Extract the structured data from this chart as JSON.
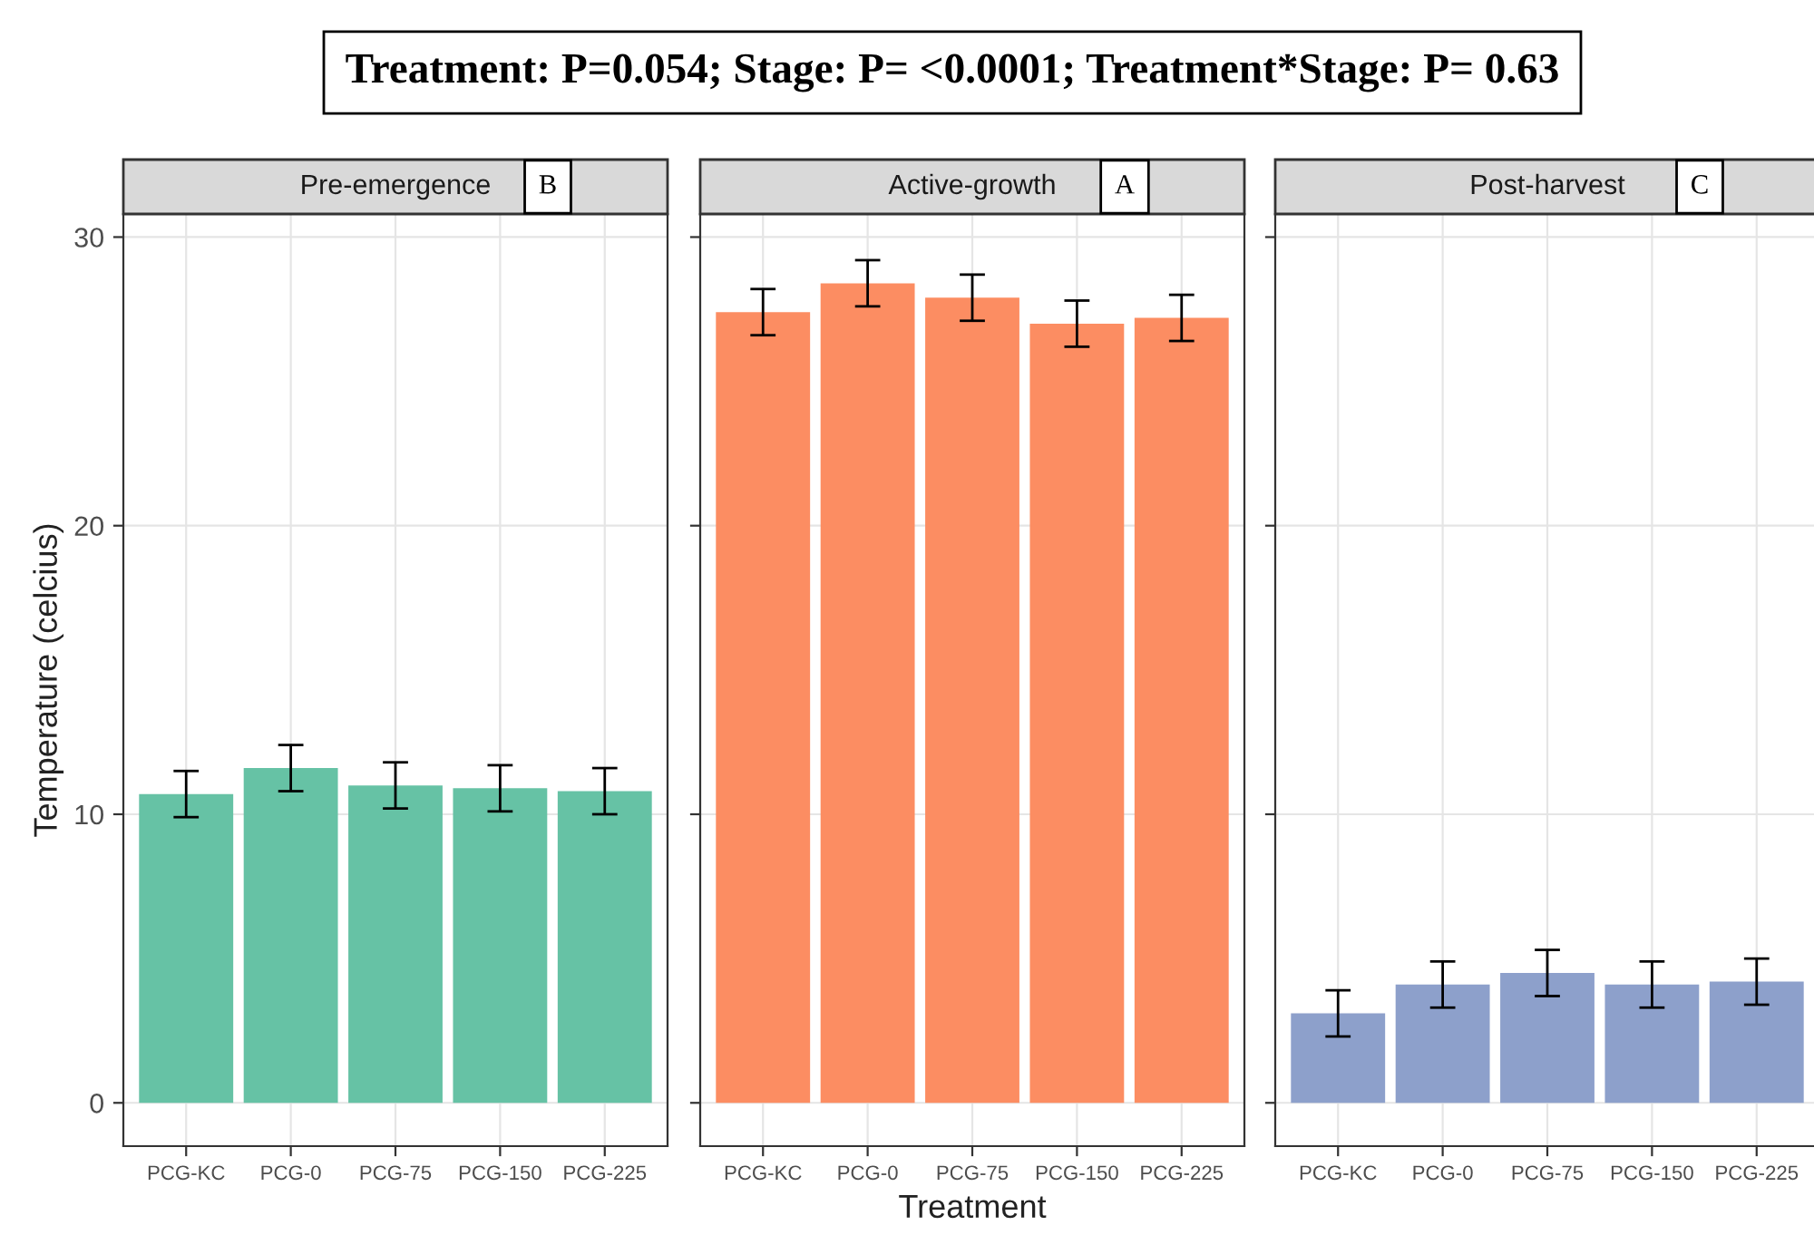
{
  "chart_data": [
    {
      "type": "bar",
      "title": "Pre-emergence",
      "annotations": [
        "B"
      ],
      "ylabel": "Temperature (celcius)",
      "categories": [
        "PCG-KC",
        "PCG-0",
        "PCG-75",
        "PCG-150",
        "PCG-225"
      ],
      "values": [
        10.7,
        11.6,
        11.0,
        10.9,
        10.8
      ],
      "errors": [
        0.8,
        0.8,
        0.8,
        0.8,
        0.8
      ],
      "color": "#66c2a5",
      "ylim": [
        -1.5,
        30.8
      ],
      "yticks": [
        0,
        10,
        20,
        30
      ],
      "grid": true,
      "subtitle": "Treatment: P=0.054; Stage: P= <0.0001; Treatment*Stage: P= 0.63"
    },
    {
      "type": "bar",
      "title": "Active-growth",
      "annotations": [
        "A"
      ],
      "xlabel": "Treatment",
      "categories": [
        "PCG-KC",
        "PCG-0",
        "PCG-75",
        "PCG-150",
        "PCG-225"
      ],
      "values": [
        27.4,
        28.4,
        27.9,
        27.0,
        27.2
      ],
      "errors": [
        0.8,
        0.8,
        0.8,
        0.8,
        0.8
      ],
      "color": "#fc8d62",
      "ylim": [
        -1.5,
        30.8
      ],
      "yticks": [
        0,
        10,
        20,
        30
      ],
      "grid": true,
      "tick_labels": "x"
    },
    {
      "type": "bar",
      "title": "Post-harvest",
      "annotations": [
        "C"
      ],
      "categories": [
        "PCG-KC",
        "PCG-0",
        "PCG-75",
        "PCG-150",
        "PCG-225"
      ],
      "values": [
        3.1,
        4.1,
        4.5,
        4.1,
        4.2
      ],
      "errors": [
        0.8,
        0.8,
        0.8,
        0.8,
        0.8
      ],
      "color": "#8da0cb",
      "ylim": [
        -1.5,
        30.8
      ],
      "yticks": [
        0,
        10,
        20,
        30
      ],
      "grid": true,
      "tick_labels": "x"
    }
  ]
}
